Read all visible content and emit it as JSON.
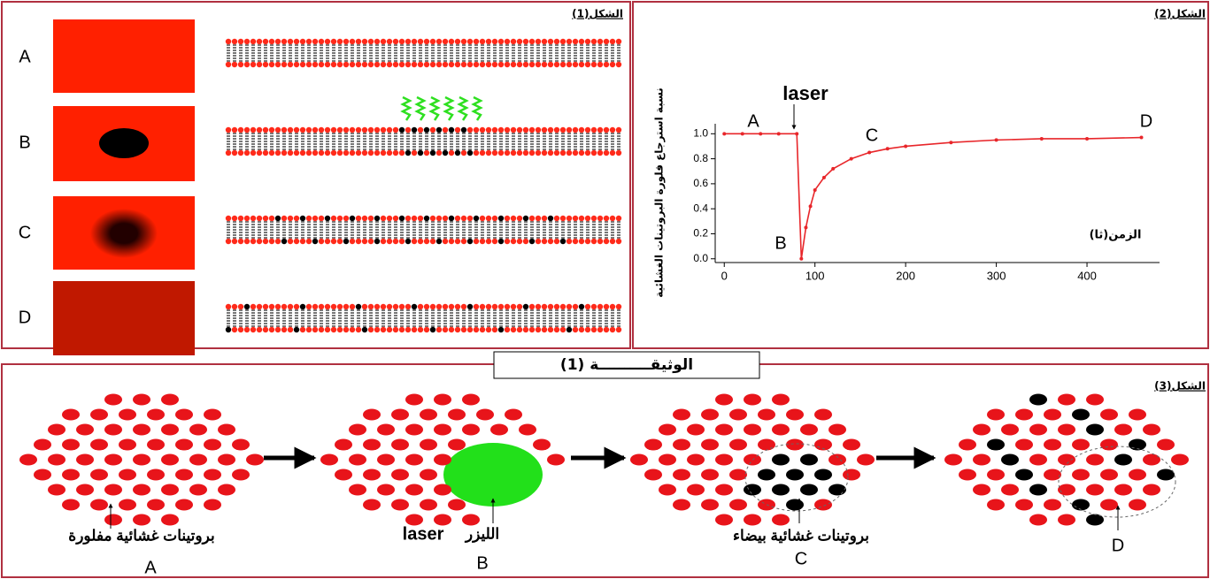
{
  "figure1": {
    "label": "الشكل(1)",
    "rows": [
      "A",
      "B",
      "C",
      "D"
    ]
  },
  "chart_data": {
    "type": "line",
    "label": "الشكل(2)",
    "y_label": "نسبة استرجاع فلورة البروتينات الغشائية",
    "x_label": "الزمن(ثا)",
    "annotations": [
      "laser",
      "A",
      "B",
      "C",
      "D"
    ],
    "x": [
      0,
      20,
      40,
      60,
      80,
      85,
      90,
      95,
      100,
      110,
      120,
      140,
      160,
      180,
      200,
      250,
      300,
      350,
      400,
      460
    ],
    "values": [
      1,
      1,
      1,
      1,
      1,
      0,
      0.25,
      0.42,
      0.55,
      0.65,
      0.72,
      0.8,
      0.85,
      0.88,
      0.9,
      0.93,
      0.95,
      0.96,
      0.96,
      0.97
    ],
    "color": "#e8262a",
    "xlim": [
      -10,
      480
    ],
    "ylim": [
      -0.03,
      1.08
    ],
    "xticks": [
      0,
      100,
      200,
      300,
      400
    ],
    "yticks": [
      {
        "value": 0,
        "label": "0.0"
      },
      {
        "value": 0.2,
        "label": "0.2"
      },
      {
        "value": 0.4,
        "label": "0.4"
      },
      {
        "value": 0.6,
        "label": "0.6"
      },
      {
        "value": 0.8,
        "label": "0.8"
      },
      {
        "value": 1,
        "label": "1.0"
      }
    ]
  },
  "document_title": "الوثيقــــــــــة (1)",
  "figure3": {
    "label": "الشكل(3)",
    "captions": [
      "بروتينات غشائية مفلورة",
      "A",
      "laser",
      "الليزر",
      "B",
      "بروتينات غشائية بيضاء",
      "C",
      "D"
    ]
  }
}
